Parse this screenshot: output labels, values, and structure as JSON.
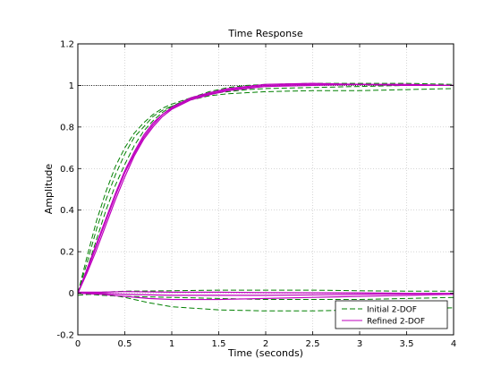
{
  "chart_data": {
    "type": "line",
    "title": "Time Response",
    "xlabel": "Time (seconds)",
    "ylabel": "Amplitude",
    "xlim": [
      0,
      4
    ],
    "ylim": [
      -0.2,
      1.2
    ],
    "xticks": [
      0,
      0.5,
      1,
      1.5,
      2,
      2.5,
      3,
      3.5,
      4
    ],
    "xtick_labels": [
      "0",
      "0.5",
      "1",
      "1.5",
      "2",
      "2.5",
      "3",
      "3.5",
      "4"
    ],
    "yticks": [
      -0.2,
      0,
      0.2,
      0.4,
      0.6,
      0.8,
      1,
      1.2
    ],
    "ytick_labels": [
      "-0.2",
      "0",
      "0.2",
      "0.4",
      "0.6",
      "0.8",
      "1",
      "1.2"
    ],
    "grid": true,
    "reference_line": {
      "y": 1,
      "style": "dotted",
      "color": "#000000"
    },
    "legend": {
      "placement": "bottom-right",
      "entries": [
        {
          "name": "Initial 2-DOF",
          "color": "#008000",
          "style": "dashed"
        },
        {
          "name": "Refined 2-DOF",
          "color": "#bf00bf",
          "style": "solid"
        }
      ]
    },
    "series": [
      {
        "name": "Initial 2-DOF",
        "color": "#008000",
        "style": "dashed",
        "x": [
          0,
          0.1,
          0.2,
          0.3,
          0.4,
          0.5,
          0.6,
          0.7,
          0.8,
          0.9,
          1.0,
          1.2,
          1.4,
          1.6,
          1.8,
          2.0,
          2.5,
          3.0,
          3.5,
          4.0
        ],
        "y": [
          0,
          0.18,
          0.35,
          0.49,
          0.61,
          0.7,
          0.77,
          0.82,
          0.86,
          0.89,
          0.91,
          0.94,
          0.96,
          0.97,
          0.98,
          0.985,
          0.99,
          0.995,
          1.0,
          1.0
        ]
      },
      {
        "name": "Initial 2-DOF",
        "color": "#008000",
        "style": "dashed",
        "x": [
          0,
          0.1,
          0.2,
          0.3,
          0.4,
          0.5,
          0.6,
          0.7,
          0.8,
          0.9,
          1.0,
          1.2,
          1.4,
          1.6,
          1.8,
          2.0,
          2.5,
          3.0,
          3.5,
          4.0
        ],
        "y": [
          0,
          0.15,
          0.31,
          0.45,
          0.57,
          0.67,
          0.75,
          0.8,
          0.85,
          0.88,
          0.9,
          0.93,
          0.95,
          0.96,
          0.965,
          0.97,
          0.975,
          0.975,
          0.98,
          0.985
        ]
      },
      {
        "name": "Initial 2-DOF",
        "color": "#008000",
        "style": "dashed",
        "x": [
          0,
          0.1,
          0.2,
          0.3,
          0.4,
          0.5,
          0.6,
          0.7,
          0.8,
          0.9,
          1.0,
          1.2,
          1.4,
          1.6,
          1.8,
          2.0,
          2.5,
          3.0,
          3.5,
          4.0
        ],
        "y": [
          0,
          0.12,
          0.26,
          0.4,
          0.52,
          0.62,
          0.71,
          0.78,
          0.83,
          0.87,
          0.9,
          0.94,
          0.97,
          0.99,
          1.0,
          1.005,
          1.01,
          1.01,
          1.01,
          1.005
        ]
      },
      {
        "name": "Initial 2-DOF",
        "color": "#008000",
        "style": "dashed",
        "x": [
          0,
          0.25,
          0.5,
          0.75,
          1.0,
          1.5,
          2.0,
          2.5,
          3.0,
          3.5,
          4.0
        ],
        "y": [
          -0.01,
          0.0,
          -0.02,
          -0.045,
          -0.065,
          -0.08,
          -0.085,
          -0.085,
          -0.08,
          -0.075,
          -0.07
        ]
      },
      {
        "name": "Initial 2-DOF",
        "color": "#008000",
        "style": "dashed",
        "x": [
          0,
          0.25,
          0.5,
          1.0,
          1.5,
          2.0,
          2.5,
          3.0,
          3.5,
          4.0
        ],
        "y": [
          0,
          -0.01,
          -0.015,
          -0.02,
          -0.025,
          -0.03,
          -0.03,
          -0.03,
          -0.025,
          -0.02
        ]
      },
      {
        "name": "Initial 2-DOF",
        "color": "#008000",
        "style": "dashed",
        "x": [
          0,
          0.25,
          0.5,
          1.0,
          1.5,
          2.0,
          2.5,
          3.0,
          3.5,
          4.0
        ],
        "y": [
          0,
          0.005,
          0.01,
          0.012,
          0.015,
          0.015,
          0.015,
          0.012,
          0.01,
          0.01
        ]
      },
      {
        "name": "Refined 2-DOF",
        "color": "#bf00bf",
        "style": "solid",
        "x": [
          0,
          0.1,
          0.2,
          0.3,
          0.4,
          0.5,
          0.6,
          0.7,
          0.8,
          0.9,
          1.0,
          1.2,
          1.4,
          1.6,
          1.8,
          2.0,
          2.5,
          3.0,
          3.5,
          4.0
        ],
        "y": [
          0,
          0.11,
          0.23,
          0.35,
          0.47,
          0.58,
          0.67,
          0.75,
          0.81,
          0.86,
          0.89,
          0.935,
          0.96,
          0.98,
          0.99,
          1.0,
          1.005,
          1.005,
          1.0,
          1.0
        ]
      },
      {
        "name": "Refined 2-DOF",
        "color": "#bf00bf",
        "style": "solid",
        "x": [
          0,
          0.1,
          0.2,
          0.3,
          0.4,
          0.5,
          0.6,
          0.7,
          0.8,
          0.9,
          1.0,
          1.2,
          1.4,
          1.6,
          1.8,
          2.0,
          2.5,
          3.0,
          3.5,
          4.0
        ],
        "y": [
          0,
          0.1,
          0.21,
          0.33,
          0.45,
          0.56,
          0.66,
          0.74,
          0.8,
          0.85,
          0.885,
          0.93,
          0.955,
          0.975,
          0.985,
          0.995,
          1.0,
          1.005,
          1.0,
          1.0
        ]
      },
      {
        "name": "Refined 2-DOF",
        "color": "#bf00bf",
        "style": "solid",
        "x": [
          0,
          0.1,
          0.2,
          0.3,
          0.4,
          0.5,
          0.6,
          0.7,
          0.8,
          0.9,
          1.0,
          1.2,
          1.4,
          1.6,
          1.8,
          2.0,
          2.5,
          3.0,
          3.5,
          4.0
        ],
        "y": [
          0,
          0.12,
          0.24,
          0.36,
          0.48,
          0.59,
          0.68,
          0.76,
          0.82,
          0.86,
          0.895,
          0.94,
          0.965,
          0.985,
          0.995,
          1.005,
          1.01,
          1.005,
          1.005,
          1.0
        ]
      },
      {
        "name": "Refined 2-DOF",
        "color": "#bf00bf",
        "style": "solid",
        "x": [
          0,
          0.25,
          0.5,
          0.75,
          1.0,
          1.5,
          2.0,
          2.5,
          3.0,
          3.5,
          4.0
        ],
        "y": [
          0,
          -0.005,
          -0.015,
          -0.025,
          -0.03,
          -0.03,
          -0.025,
          -0.02,
          -0.015,
          -0.01,
          -0.005
        ]
      },
      {
        "name": "Refined 2-DOF",
        "color": "#bf00bf",
        "style": "solid",
        "x": [
          0,
          0.25,
          0.5,
          1.0,
          1.5,
          2.0,
          2.5,
          3.0,
          3.5,
          4.0
        ],
        "y": [
          0,
          0.0,
          -0.005,
          -0.01,
          -0.01,
          -0.01,
          -0.008,
          -0.005,
          -0.003,
          0.0
        ]
      },
      {
        "name": "Refined 2-DOF",
        "color": "#bf00bf",
        "style": "solid",
        "x": [
          0,
          0.25,
          0.5,
          1.0,
          1.5,
          2.0,
          2.5,
          3.0,
          3.5,
          4.0
        ],
        "y": [
          0.005,
          0.005,
          0.008,
          0.005,
          0.005,
          0.003,
          0.002,
          0.002,
          0.0,
          0.0
        ]
      }
    ]
  }
}
